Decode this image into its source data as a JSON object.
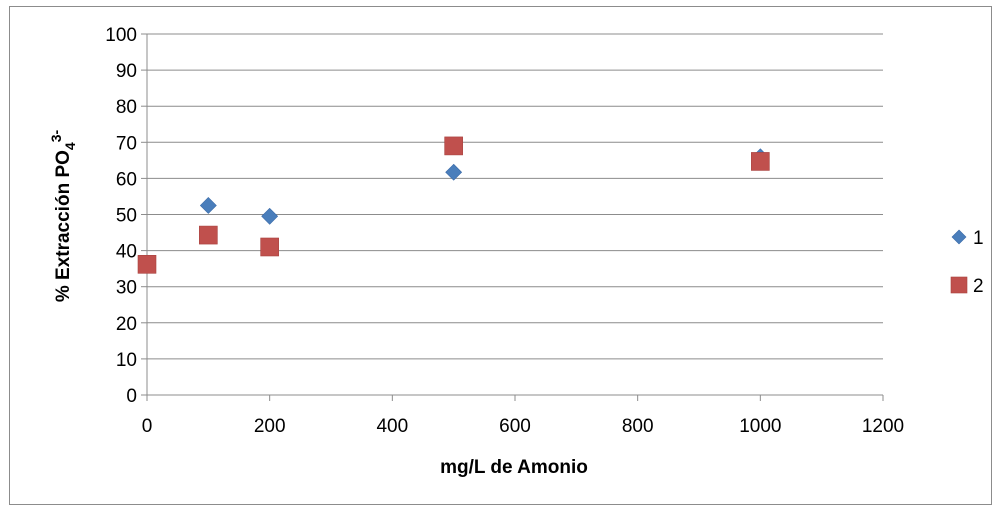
{
  "chart_data": {
    "type": "scatter",
    "title": "",
    "xlabel": "mg/L  de Amonio",
    "ylabel": "% Extracción PO",
    "ylabel_sub": "4",
    "ylabel_sup": "3-",
    "xlim": [
      0,
      1200
    ],
    "ylim": [
      0,
      100
    ],
    "xticks": [
      "0",
      "200",
      "400",
      "600",
      "800",
      "1000",
      "1200"
    ],
    "yticks": [
      "0",
      "10",
      "20",
      "30",
      "40",
      "50",
      "60",
      "70",
      "80",
      "90",
      "100"
    ],
    "grid": "horizontal",
    "legend_position": "right",
    "series": [
      {
        "name": "1",
        "marker": "diamond",
        "color": "#4a7ebb",
        "x": [
          100,
          200,
          500,
          1000
        ],
        "y": [
          52.5,
          49.5,
          61.7,
          66
        ]
      },
      {
        "name": "2",
        "marker": "square",
        "color": "#c0504d",
        "x": [
          0,
          100,
          200,
          500,
          1000
        ],
        "y": [
          36.2,
          44.3,
          41,
          69,
          64.7
        ]
      }
    ]
  }
}
